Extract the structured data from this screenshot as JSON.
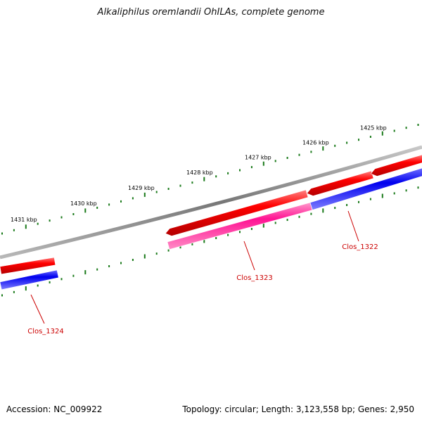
{
  "title": "Alkaliphilus oremlandii OhILAs, complete genome",
  "footer": {
    "accession": "Accession: NC_009922",
    "summary": "Topology: circular; Length: 3,123,558 bp; Genes: 2,950"
  },
  "scale_labels": [
    "1425 kbp",
    "1426 kbp",
    "1427 kbp",
    "1428 kbp",
    "1429 kbp",
    "1430 kbp",
    "1431 kbp"
  ],
  "genes": [
    {
      "name": "Clos_1322",
      "forward_product": "red",
      "reverse_product": "blue"
    },
    {
      "name": "Clos_1323",
      "forward_product": "red",
      "reverse_product": "pink"
    },
    {
      "name": "Clos_1324",
      "forward_product": "red",
      "reverse_product": "blue"
    }
  ],
  "colors": {
    "backbone": "#808080",
    "cds": "#ff0000",
    "gene_blue": "#0000ee",
    "gene_pink": "#ff1493",
    "ticks": "#1a7a1a",
    "label": "#cc0000"
  }
}
